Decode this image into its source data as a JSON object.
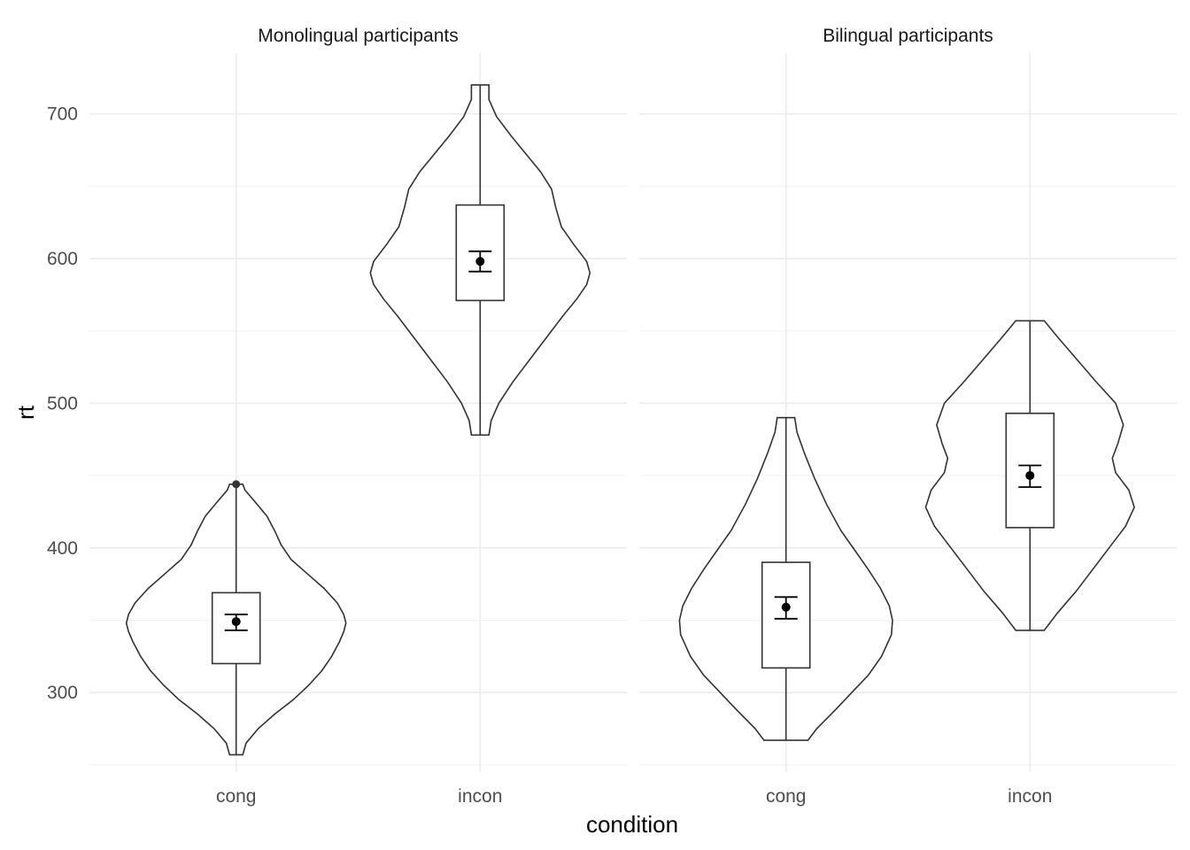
{
  "chart_data": {
    "type": "violin",
    "xlabel": "condition",
    "ylabel": "rt",
    "ylim": [
      245,
      742
    ],
    "y_breaks": [
      300,
      400,
      500,
      600,
      700
    ],
    "y_minor_breaks": [
      250,
      350,
      450,
      550,
      650
    ],
    "categories": [
      "cong",
      "incon"
    ],
    "grid": true,
    "panels": [
      {
        "title": "Monolingual participants",
        "groups": [
          {
            "category": "cong",
            "violin": {
              "min": 257,
              "max": 444,
              "profile": [
                [
                  257,
                  0.06
                ],
                [
                  265,
                  0.09
                ],
                [
                  275,
                  0.2
                ],
                [
                  285,
                  0.35
                ],
                [
                  295,
                  0.52
                ],
                [
                  305,
                  0.66
                ],
                [
                  315,
                  0.78
                ],
                [
                  325,
                  0.87
                ],
                [
                  335,
                  0.94
                ],
                [
                  342,
                  0.98
                ],
                [
                  348,
                  1.0
                ],
                [
                  354,
                  0.98
                ],
                [
                  362,
                  0.92
                ],
                [
                  372,
                  0.8
                ],
                [
                  382,
                  0.65
                ],
                [
                  392,
                  0.5
                ],
                [
                  402,
                  0.41
                ],
                [
                  412,
                  0.35
                ],
                [
                  422,
                  0.28
                ],
                [
                  432,
                  0.17
                ],
                [
                  440,
                  0.08
                ],
                [
                  444,
                  0.06
                ]
              ]
            },
            "box": {
              "lower": 320,
              "upper": 369,
              "whisker_low": 257,
              "whisker_high": 444
            },
            "mean": 349,
            "ci_low": 343,
            "ci_high": 354,
            "outliers": [
              444
            ]
          },
          {
            "category": "incon",
            "violin": {
              "min": 478,
              "max": 720,
              "profile": [
                [
                  478,
                  0.08
                ],
                [
                  488,
                  0.1
                ],
                [
                  500,
                  0.17
                ],
                [
                  515,
                  0.3
                ],
                [
                  530,
                  0.45
                ],
                [
                  545,
                  0.6
                ],
                [
                  560,
                  0.75
                ],
                [
                  572,
                  0.88
                ],
                [
                  582,
                  0.97
                ],
                [
                  590,
                  1.0
                ],
                [
                  598,
                  0.97
                ],
                [
                  610,
                  0.85
                ],
                [
                  622,
                  0.74
                ],
                [
                  635,
                  0.69
                ],
                [
                  648,
                  0.65
                ],
                [
                  660,
                  0.55
                ],
                [
                  672,
                  0.42
                ],
                [
                  685,
                  0.28
                ],
                [
                  698,
                  0.15
                ],
                [
                  710,
                  0.08
                ],
                [
                  720,
                  0.08
                ]
              ]
            },
            "box": {
              "lower": 571,
              "upper": 637,
              "whisker_low": 478,
              "whisker_high": 720
            },
            "mean": 598,
            "ci_low": 591,
            "ci_high": 605,
            "outliers": []
          }
        ]
      },
      {
        "title": "Bilingual participants",
        "groups": [
          {
            "category": "cong",
            "violin": {
              "min": 267,
              "max": 490,
              "profile": [
                [
                  267,
                  0.2
                ],
                [
                  275,
                  0.28
                ],
                [
                  288,
                  0.45
                ],
                [
                  300,
                  0.6
                ],
                [
                  312,
                  0.75
                ],
                [
                  325,
                  0.87
                ],
                [
                  340,
                  0.96
                ],
                [
                  350,
                  0.97
                ],
                [
                  360,
                  0.94
                ],
                [
                  372,
                  0.86
                ],
                [
                  385,
                  0.75
                ],
                [
                  398,
                  0.63
                ],
                [
                  412,
                  0.5
                ],
                [
                  430,
                  0.37
                ],
                [
                  448,
                  0.26
                ],
                [
                  465,
                  0.17
                ],
                [
                  480,
                  0.1
                ],
                [
                  490,
                  0.08
                ]
              ]
            },
            "box": {
              "lower": 317,
              "upper": 390,
              "whisker_low": 267,
              "whisker_high": 490
            },
            "mean": 359,
            "ci_low": 351,
            "ci_high": 366,
            "outliers": []
          },
          {
            "category": "incon",
            "violin": {
              "min": 343,
              "max": 557,
              "profile": [
                [
                  343,
                  0.13
                ],
                [
                  355,
                  0.25
                ],
                [
                  370,
                  0.42
                ],
                [
                  385,
                  0.57
                ],
                [
                  400,
                  0.72
                ],
                [
                  415,
                  0.87
                ],
                [
                  428,
                  0.95
                ],
                [
                  440,
                  0.9
                ],
                [
                  452,
                  0.78
                ],
                [
                  462,
                  0.75
                ],
                [
                  472,
                  0.8
                ],
                [
                  485,
                  0.85
                ],
                [
                  500,
                  0.78
                ],
                [
                  515,
                  0.6
                ],
                [
                  530,
                  0.43
                ],
                [
                  545,
                  0.26
                ],
                [
                  557,
                  0.13
                ]
              ]
            },
            "box": {
              "lower": 414,
              "upper": 493,
              "whisker_low": 343,
              "whisker_high": 557
            },
            "mean": 450,
            "ci_low": 442,
            "ci_high": 457,
            "outliers": []
          }
        ]
      }
    ]
  }
}
